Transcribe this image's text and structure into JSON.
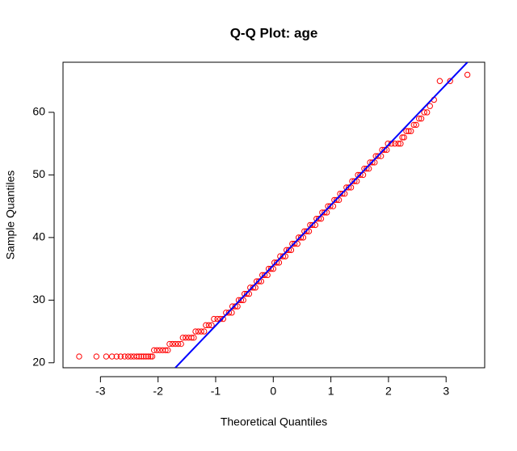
{
  "chart_data": {
    "type": "scatter",
    "title": "Q-Q Plot:  age",
    "x_label": "Theoretical Quantiles",
    "y_label": "Sample Quantiles",
    "xlim": [
      -3.65,
      3.67
    ],
    "ylim": [
      19.2,
      68
    ],
    "xticks": [
      -3,
      -2,
      -1,
      0,
      1,
      2,
      3
    ],
    "yticks": [
      20,
      30,
      40,
      50,
      60
    ],
    "series": [
      {
        "color": "#ff0000",
        "x": [
          -3.37,
          -3.07,
          -2.9,
          -2.8,
          -2.72,
          -2.65,
          -2.58,
          -2.52,
          -2.47,
          -2.42,
          -2.37,
          -2.33,
          -2.29,
          -2.25,
          -2.21,
          -2.17,
          -2.13,
          -2.1,
          -2.07,
          -2.02,
          -1.97,
          -1.92,
          -1.87,
          -1.83,
          -1.8,
          -1.75,
          -1.7,
          -1.65,
          -1.6,
          -1.57,
          -1.52,
          -1.47,
          -1.42,
          -1.38,
          -1.35,
          -1.3,
          -1.25,
          -1.2,
          -1.17,
          -1.12,
          -1.07,
          -1.03,
          -0.97,
          -0.92,
          -0.87,
          -0.82,
          -0.77,
          -0.72,
          -0.71,
          -0.66,
          -0.62,
          -0.6,
          -0.56,
          -0.52,
          -0.5,
          -0.46,
          -0.42,
          -0.4,
          -0.35,
          -0.31,
          -0.29,
          -0.25,
          -0.21,
          -0.19,
          -0.15,
          -0.1,
          -0.08,
          -0.04,
          0,
          0.02,
          0.06,
          0.1,
          0.12,
          0.17,
          0.21,
          0.23,
          0.27,
          0.31,
          0.33,
          0.37,
          0.42,
          0.44,
          0.48,
          0.52,
          0.54,
          0.58,
          0.62,
          0.64,
          0.68,
          0.73,
          0.75,
          0.79,
          0.83,
          0.85,
          0.89,
          0.93,
          0.95,
          0.99,
          1.04,
          1.06,
          1.1,
          1.14,
          1.16,
          1.2,
          1.24,
          1.27,
          1.31,
          1.35,
          1.37,
          1.41,
          1.45,
          1.47,
          1.51,
          1.56,
          1.58,
          1.62,
          1.66,
          1.68,
          1.72,
          1.76,
          1.78,
          1.82,
          1.87,
          1.89,
          1.93,
          1.97,
          1.99,
          2.05,
          2.11,
          2.17,
          2.21,
          2.24,
          2.27,
          2.31,
          2.35,
          2.39,
          2.44,
          2.48,
          2.53,
          2.57,
          2.62,
          2.67,
          2.72,
          2.79,
          2.89,
          3.07,
          3.37
        ],
        "values": [
          21,
          21,
          21,
          21,
          21,
          21,
          21,
          21,
          21,
          21,
          21,
          21,
          21,
          21,
          21,
          21,
          21,
          21,
          22,
          22,
          22,
          22,
          22,
          22,
          23,
          23,
          23,
          23,
          23,
          24,
          24,
          24,
          24,
          24,
          25,
          25,
          25,
          25,
          26,
          26,
          26,
          27,
          27,
          27,
          27,
          28,
          28,
          28,
          29,
          29,
          29,
          30,
          30,
          30,
          31,
          31,
          31,
          32,
          32,
          32,
          33,
          33,
          33,
          34,
          34,
          34,
          35,
          35,
          35,
          36,
          36,
          36,
          37,
          37,
          37,
          38,
          38,
          38,
          39,
          39,
          39,
          40,
          40,
          40,
          41,
          41,
          41,
          42,
          42,
          42,
          43,
          43,
          43,
          44,
          44,
          44,
          45,
          45,
          45,
          46,
          46,
          46,
          47,
          47,
          47,
          48,
          48,
          48,
          49,
          49,
          49,
          50,
          50,
          50,
          51,
          51,
          51,
          52,
          52,
          52,
          53,
          53,
          53,
          54,
          54,
          54,
          55,
          55,
          55,
          55,
          55,
          56,
          56,
          57,
          57,
          57,
          58,
          58,
          59,
          59,
          60,
          60,
          61,
          62,
          65,
          65,
          66
        ]
      }
    ],
    "reference_line": {
      "color": "#0000ff",
      "x": [
        -1.7,
        3.37
      ],
      "y": [
        19.2,
        68
      ]
    }
  }
}
